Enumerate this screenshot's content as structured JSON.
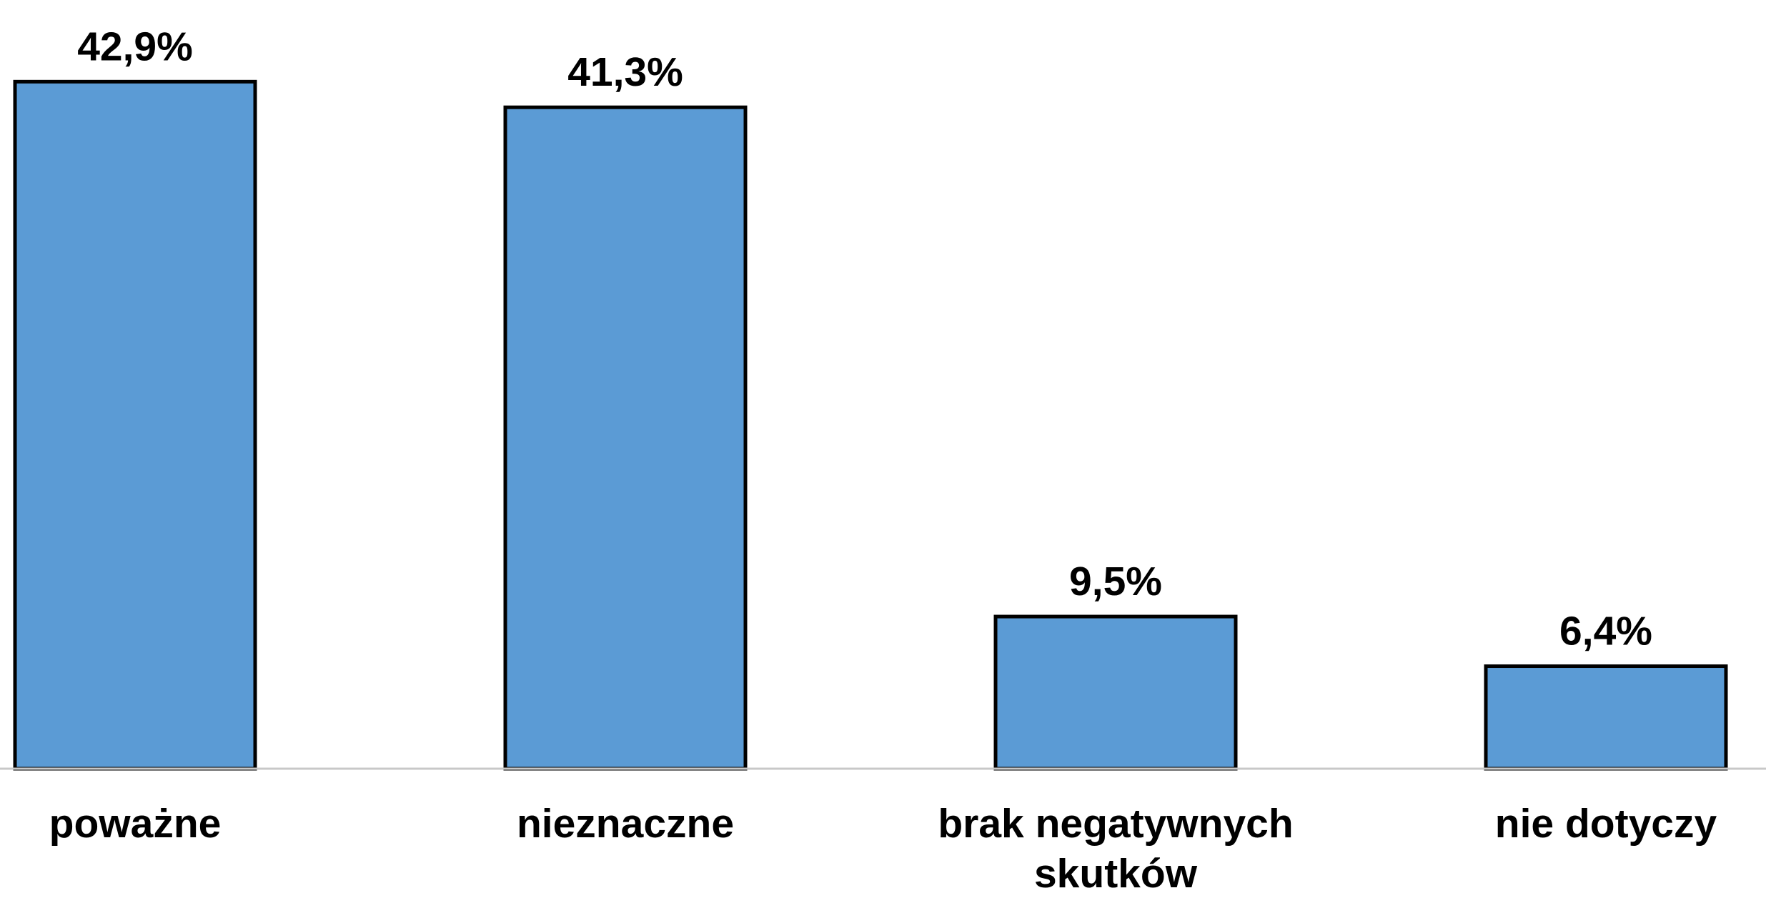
{
  "chart_data": {
    "type": "bar",
    "categories": [
      "poważne",
      "nieznaczne",
      "brak negatywnych skutków",
      "nie dotyczy"
    ],
    "values": [
      42.9,
      41.3,
      9.5,
      6.4
    ],
    "value_labels": [
      "42,9%",
      "41,3%",
      "9,5%",
      "6,4%"
    ],
    "color": "#5b9bd5",
    "ylim": [
      0,
      48
    ]
  }
}
